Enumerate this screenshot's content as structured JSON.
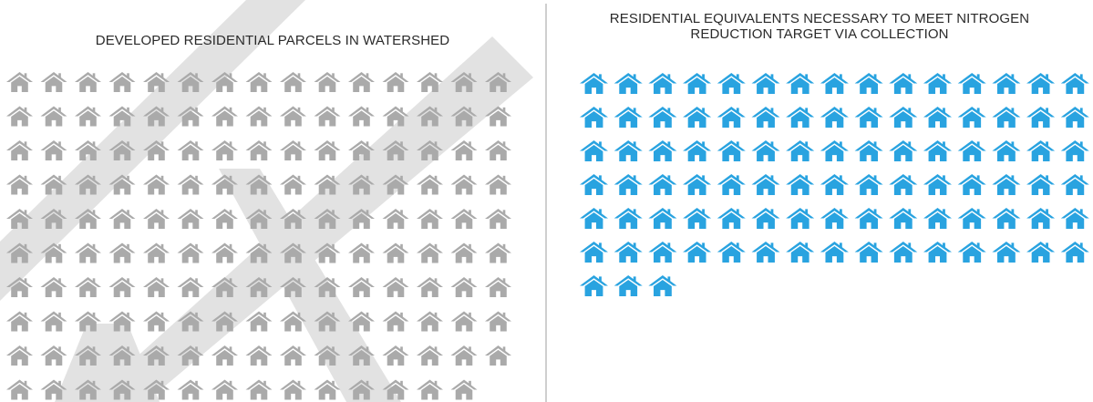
{
  "chart_data": [
    {
      "type": "pictograph",
      "title": "DEVELOPED RESIDENTIAL PARCELS IN WATERSHED",
      "icon": "house-icon",
      "color": "#aaaaaa",
      "count": 149,
      "icons_per_row": 15
    },
    {
      "type": "pictograph",
      "title": "RESIDENTIAL EQUIVALENTS NECESSARY TO MEET NITROGEN\nREDUCTION TARGET VIA COLLECTION",
      "icon": "house-icon",
      "color": "#29a3e0",
      "count": 93,
      "icons_per_row": 15
    }
  ],
  "watermark_color": "#e2e2e2"
}
